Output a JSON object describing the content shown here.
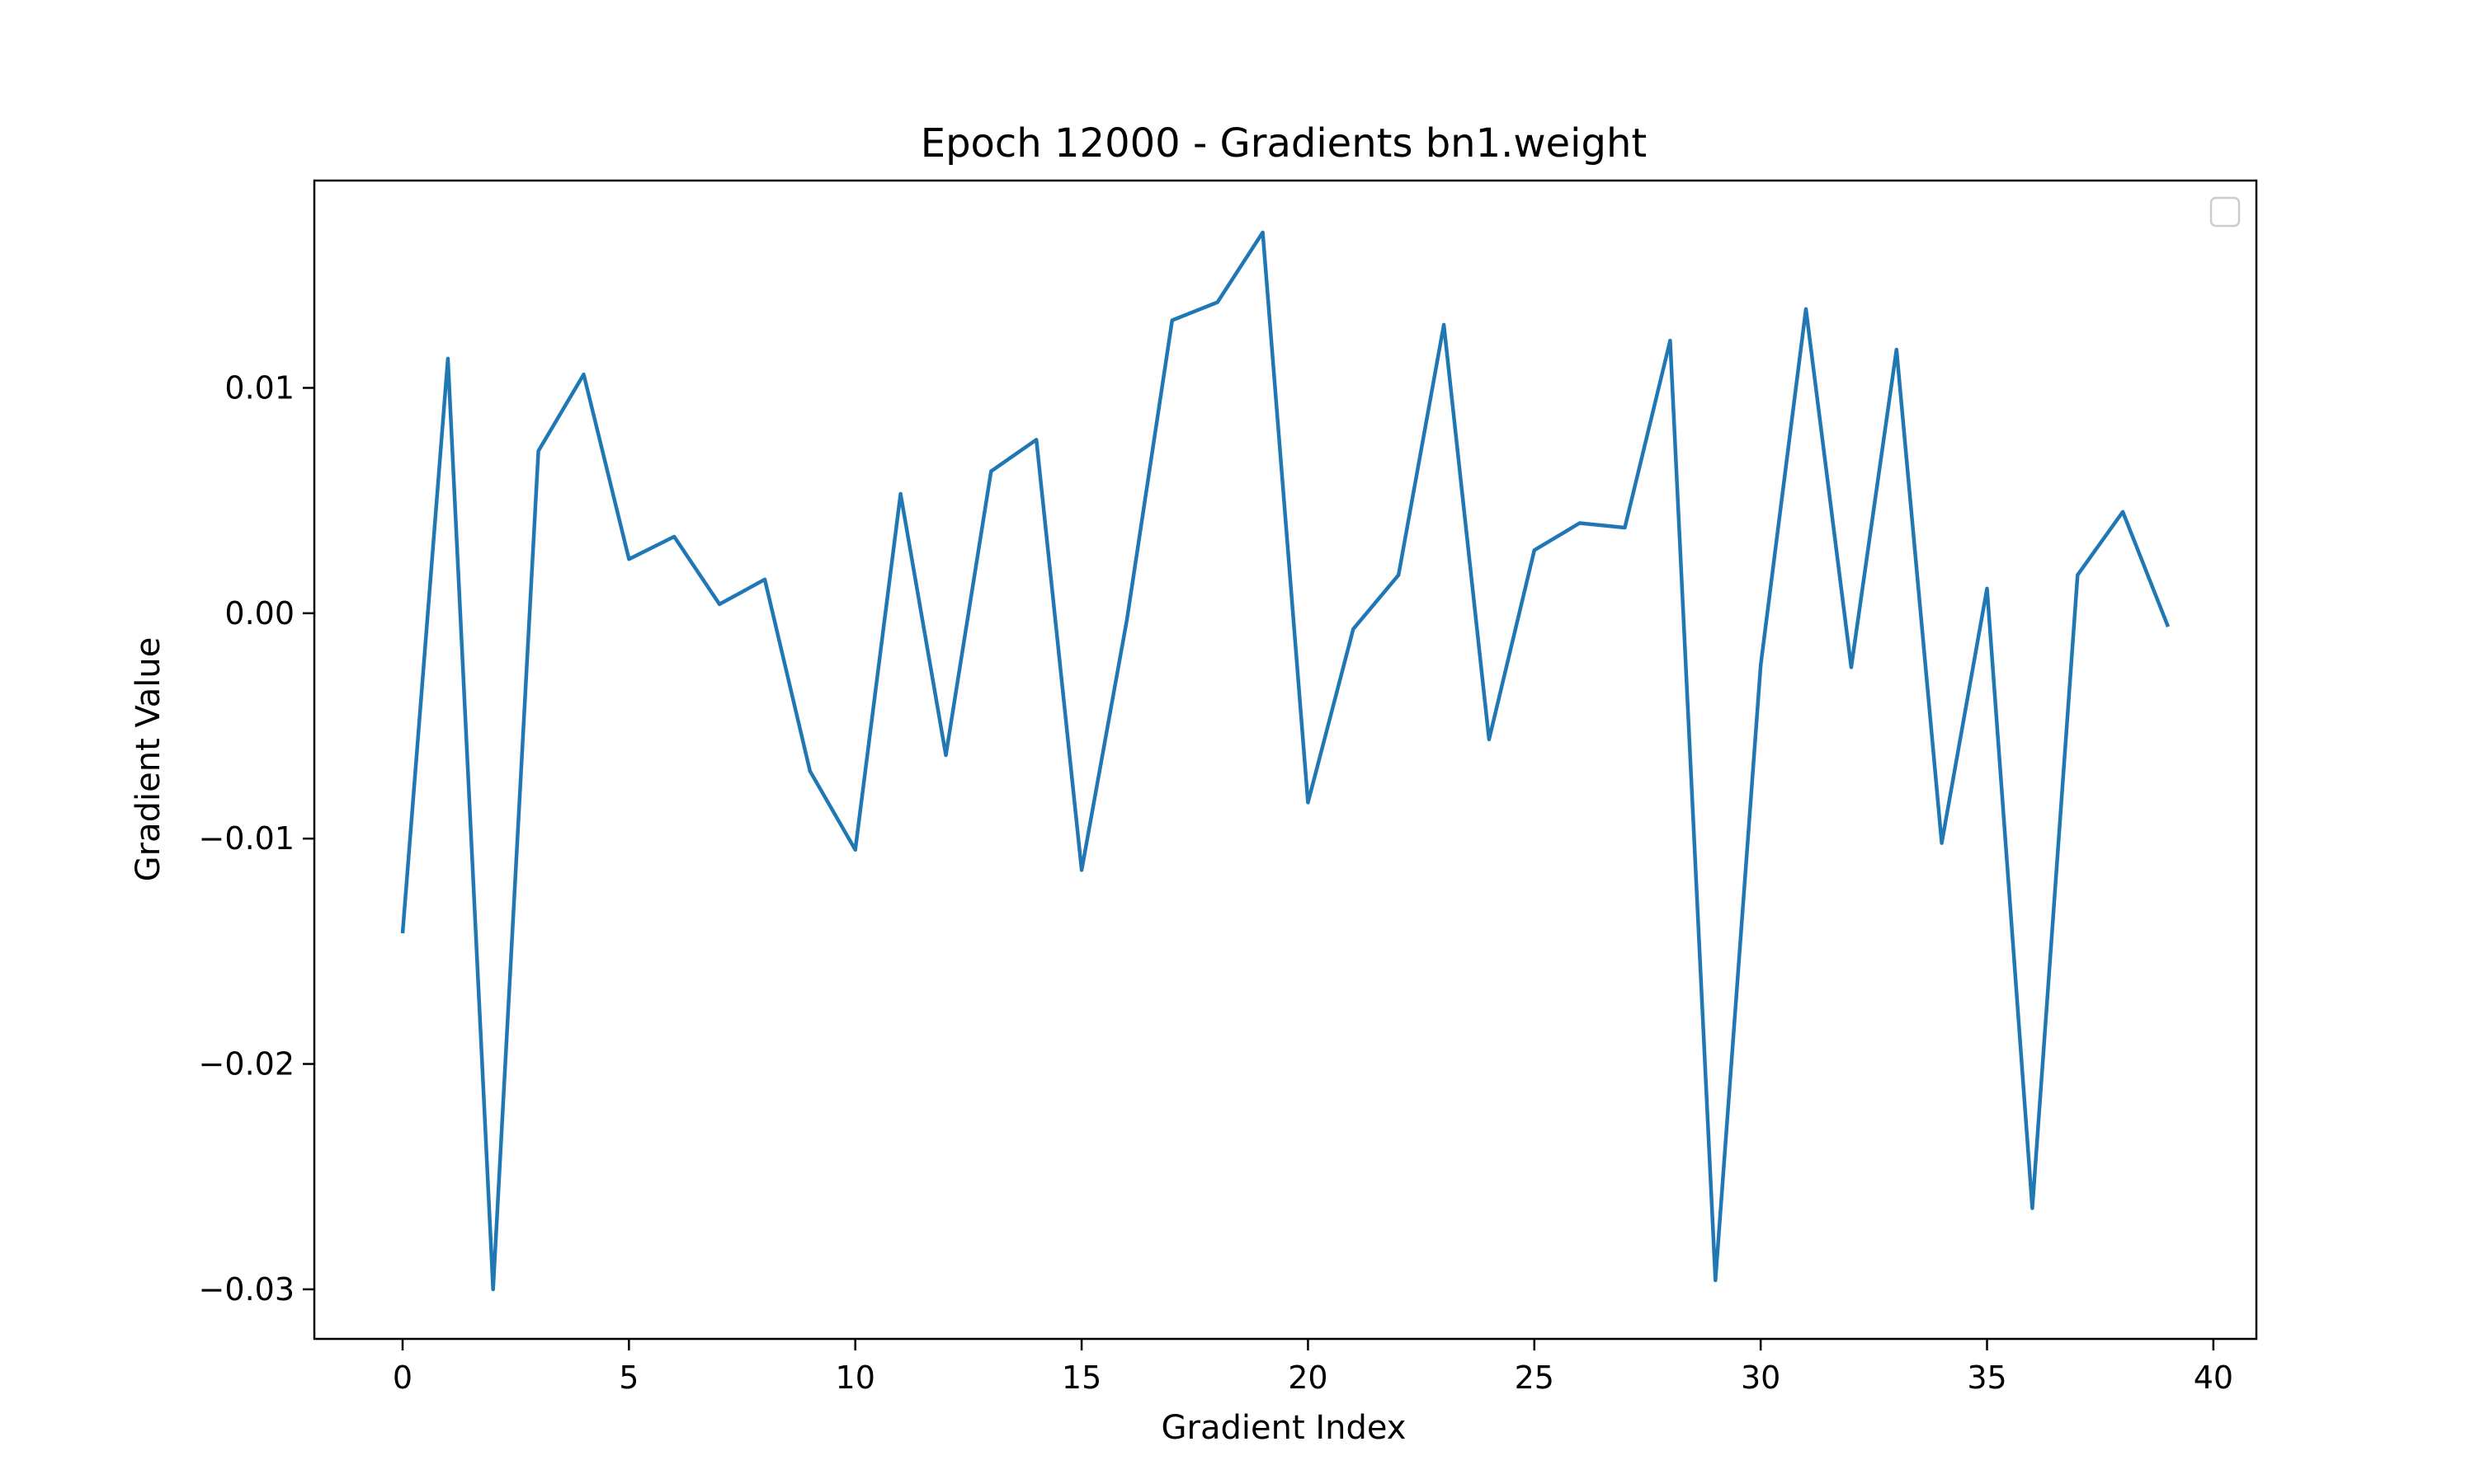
{
  "chart_data": {
    "type": "line",
    "title": "Epoch 12000 - Gradients bn1.weight",
    "xlabel": "Gradient Index",
    "ylabel": "Gradient Value",
    "xlim": [
      -1.95,
      40.95
    ],
    "ylim": [
      -0.0322,
      0.0192
    ],
    "xticks": [
      0,
      5,
      10,
      15,
      20,
      25,
      30,
      35,
      40
    ],
    "xtick_labels": [
      "0",
      "5",
      "10",
      "15",
      "20",
      "25",
      "30",
      "35",
      "40"
    ],
    "yticks": [
      -0.03,
      -0.02,
      -0.01,
      0.0,
      0.01
    ],
    "ytick_labels": [
      "−0.03",
      "−0.02",
      "−0.01",
      "0.00",
      "0.01"
    ],
    "legend": "top-right",
    "grid": false,
    "series": [
      {
        "color": "#1f77b4",
        "x": [
          0,
          1,
          2,
          3,
          4,
          5,
          6,
          7,
          8,
          9,
          10,
          11,
          12,
          13,
          14,
          15,
          16,
          17,
          18,
          19,
          20,
          21,
          22,
          23,
          24,
          25,
          26,
          27,
          28,
          29,
          30,
          31,
          32,
          33,
          34,
          35,
          36,
          37,
          38,
          39
        ],
        "values": [
          -0.0142,
          0.0113,
          -0.03,
          0.0072,
          0.0106,
          0.0024,
          0.0034,
          0.0004,
          0.0015,
          -0.007,
          -0.0105,
          0.0053,
          -0.0063,
          0.0063,
          0.0077,
          -0.0114,
          -0.0003,
          0.013,
          0.0138,
          0.0169,
          -0.0084,
          -0.0007,
          0.0017,
          0.0128,
          -0.0056,
          0.0028,
          0.004,
          0.0038,
          0.0121,
          -0.0296,
          -0.0023,
          0.0135,
          -0.0024,
          0.0117,
          -0.0102,
          0.0011,
          -0.0264,
          0.0017,
          0.0045,
          -0.0006
        ]
      }
    ]
  }
}
